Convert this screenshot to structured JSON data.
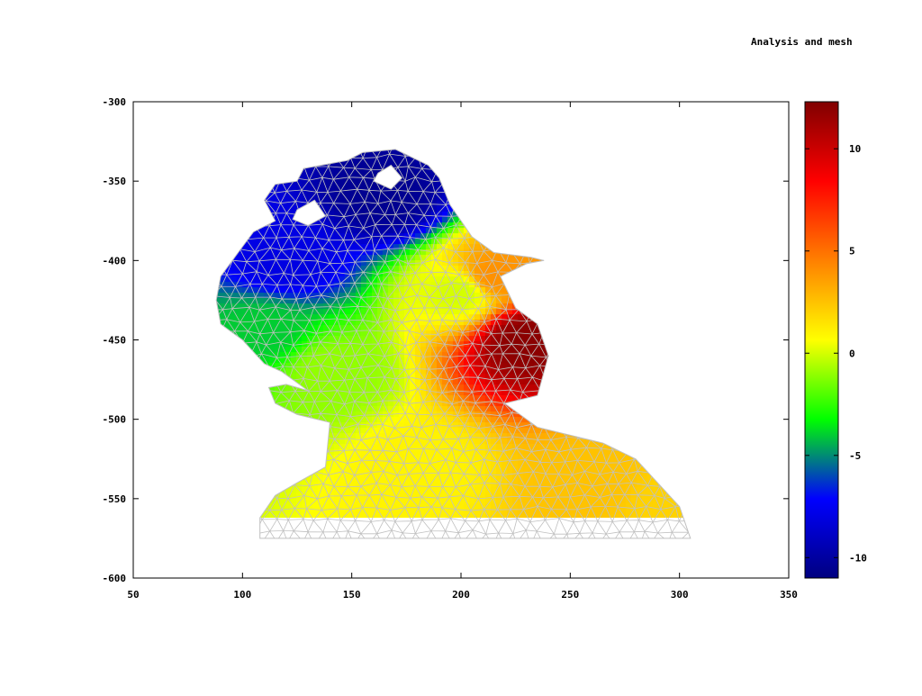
{
  "title": "Analysis and mesh",
  "chart_data": {
    "type": "heatmap",
    "title": "Analysis and mesh",
    "xlim": [
      50,
      350
    ],
    "ylim": [
      -600,
      -300
    ],
    "x_ticks": [
      "50",
      "100",
      "150",
      "200",
      "250",
      "300",
      "350"
    ],
    "y_ticks": [
      "-300",
      "-350",
      "-400",
      "-450",
      "-500",
      "-550",
      "-600"
    ],
    "colorbar": {
      "range": [
        -11,
        12.3
      ],
      "ticks": [
        "10",
        "5",
        "0",
        "-5",
        "-10"
      ],
      "colormap": [
        "#000080",
        "#0000ff",
        "#00ff00",
        "#ffff00",
        "#ff8000",
        "#ff0000",
        "#800000"
      ]
    },
    "mesh_color": "#c0c0c0",
    "domain_outline": [
      [
        108,
        -575
      ],
      [
        108,
        -562
      ],
      [
        115,
        -548
      ],
      [
        125,
        -540
      ],
      [
        138,
        -530
      ],
      [
        140,
        -502
      ],
      [
        125,
        -497
      ],
      [
        115,
        -490
      ],
      [
        112,
        -480
      ],
      [
        120,
        -478
      ],
      [
        130,
        -482
      ],
      [
        118,
        -470
      ],
      [
        110,
        -465
      ],
      [
        100,
        -450
      ],
      [
        90,
        -440
      ],
      [
        88,
        -425
      ],
      [
        90,
        -410
      ],
      [
        98,
        -395
      ],
      [
        105,
        -382
      ],
      [
        115,
        -375
      ],
      [
        110,
        -362
      ],
      [
        115,
        -352
      ],
      [
        125,
        -350
      ],
      [
        128,
        -342
      ],
      [
        148,
        -337
      ],
      [
        155,
        -332
      ],
      [
        170,
        -330
      ],
      [
        185,
        -340
      ],
      [
        190,
        -348
      ],
      [
        195,
        -365
      ],
      [
        205,
        -385
      ],
      [
        215,
        -395
      ],
      [
        232,
        -398
      ],
      [
        238,
        -400
      ],
      [
        230,
        -402
      ],
      [
        218,
        -410
      ],
      [
        225,
        -430
      ],
      [
        235,
        -440
      ],
      [
        240,
        -460
      ],
      [
        235,
        -485
      ],
      [
        220,
        -490
      ],
      [
        235,
        -505
      ],
      [
        265,
        -515
      ],
      [
        280,
        -525
      ],
      [
        290,
        -540
      ],
      [
        300,
        -555
      ],
      [
        305,
        -575
      ]
    ],
    "holes": [
      [
        [
          162,
          -345
        ],
        [
          168,
          -340
        ],
        [
          173,
          -348
        ],
        [
          168,
          -355
        ],
        [
          160,
          -350
        ]
      ],
      [
        [
          125,
          -368
        ],
        [
          133,
          -362
        ],
        [
          138,
          -372
        ],
        [
          130,
          -378
        ],
        [
          123,
          -374
        ]
      ]
    ],
    "value_field": {
      "description_points": [
        {
          "x": 165,
          "y": -360,
          "value": -10.5
        },
        {
          "x": 120,
          "y": -400,
          "value": -8
        },
        {
          "x": 110,
          "y": -445,
          "value": -4
        },
        {
          "x": 140,
          "y": -470,
          "value": -1
        },
        {
          "x": 180,
          "y": -530,
          "value": 1
        },
        {
          "x": 230,
          "y": -450,
          "value": 12
        },
        {
          "x": 215,
          "y": -410,
          "value": 4
        },
        {
          "x": 260,
          "y": -540,
          "value": 2.5
        },
        {
          "x": 295,
          "y": -555,
          "value": 2
        },
        {
          "x": 200,
          "y": -420,
          "value": 0
        }
      ]
    }
  }
}
